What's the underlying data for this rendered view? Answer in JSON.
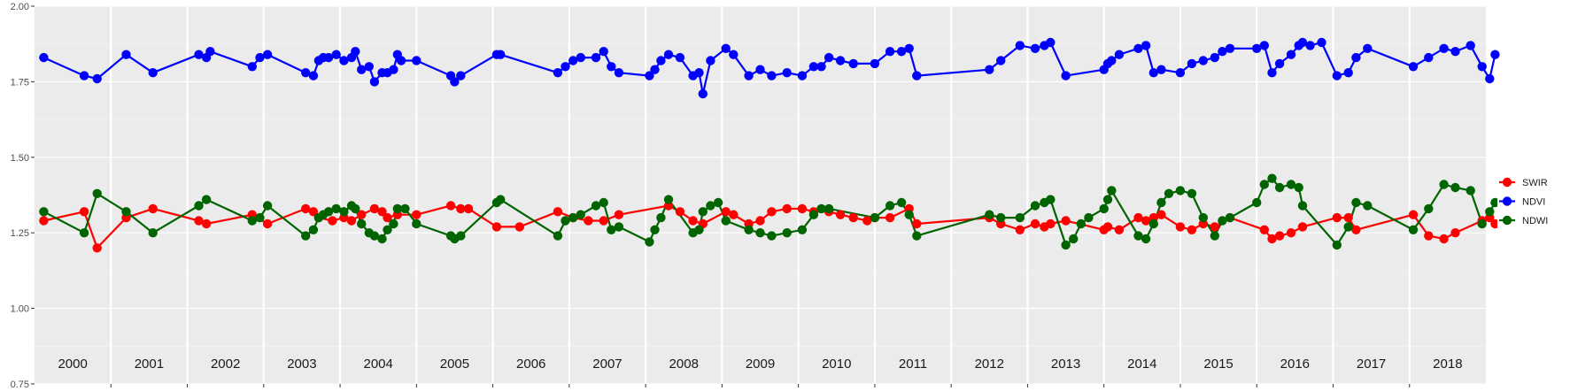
{
  "chart_data": {
    "type": "line",
    "title": "",
    "xlabel": "",
    "ylabel": "",
    "ylim": [
      0.75,
      2.0
    ],
    "yticks": [
      "0.75",
      "1.00",
      "1.25",
      "1.50",
      "1.75",
      "2.00"
    ],
    "xlim": [
      2000.0,
      2019.0
    ],
    "year_labels": [
      "2000",
      "2001",
      "2002",
      "2003",
      "2004",
      "2005",
      "2006",
      "2007",
      "2008",
      "2009",
      "2010",
      "2011",
      "2012",
      "2013",
      "2014",
      "2015",
      "2016",
      "2017",
      "2018"
    ],
    "grid": true,
    "background": "#EBEBEB",
    "legend": {
      "position": "right"
    },
    "series": [
      {
        "name": "SWIR",
        "color": "#FF0000",
        "points": [
          [
            2000.12,
            1.29
          ],
          [
            2000.65,
            1.32
          ],
          [
            2000.82,
            1.2
          ],
          [
            2001.2,
            1.3
          ],
          [
            2001.55,
            1.33
          ],
          [
            2002.15,
            1.29
          ],
          [
            2002.25,
            1.28
          ],
          [
            2002.85,
            1.31
          ],
          [
            2003.05,
            1.28
          ],
          [
            2003.55,
            1.33
          ],
          [
            2003.65,
            1.32
          ],
          [
            2003.72,
            1.3
          ],
          [
            2003.9,
            1.29
          ],
          [
            2004.05,
            1.3
          ],
          [
            2004.15,
            1.29
          ],
          [
            2004.28,
            1.31
          ],
          [
            2004.45,
            1.33
          ],
          [
            2004.55,
            1.32
          ],
          [
            2004.62,
            1.3
          ],
          [
            2004.75,
            1.31
          ],
          [
            2005.0,
            1.31
          ],
          [
            2005.45,
            1.34
          ],
          [
            2005.58,
            1.33
          ],
          [
            2005.68,
            1.33
          ],
          [
            2006.05,
            1.27
          ],
          [
            2006.35,
            1.27
          ],
          [
            2006.85,
            1.32
          ],
          [
            2007.05,
            1.3
          ],
          [
            2007.25,
            1.29
          ],
          [
            2007.45,
            1.29
          ],
          [
            2007.65,
            1.31
          ],
          [
            2008.3,
            1.34
          ],
          [
            2008.45,
            1.32
          ],
          [
            2008.62,
            1.29
          ],
          [
            2008.75,
            1.28
          ],
          [
            2009.05,
            1.32
          ],
          [
            2009.15,
            1.31
          ],
          [
            2009.35,
            1.28
          ],
          [
            2009.5,
            1.29
          ],
          [
            2009.65,
            1.32
          ],
          [
            2009.85,
            1.33
          ],
          [
            2010.05,
            1.33
          ],
          [
            2010.2,
            1.32
          ],
          [
            2010.4,
            1.32
          ],
          [
            2010.55,
            1.31
          ],
          [
            2010.72,
            1.3
          ],
          [
            2010.9,
            1.29
          ],
          [
            2011.0,
            1.3
          ],
          [
            2011.2,
            1.3
          ],
          [
            2011.45,
            1.33
          ],
          [
            2011.55,
            1.28
          ],
          [
            2012.5,
            1.3
          ],
          [
            2012.65,
            1.28
          ],
          [
            2012.9,
            1.26
          ],
          [
            2013.1,
            1.28
          ],
          [
            2013.22,
            1.27
          ],
          [
            2013.3,
            1.28
          ],
          [
            2013.5,
            1.29
          ],
          [
            2014.0,
            1.26
          ],
          [
            2014.05,
            1.27
          ],
          [
            2014.2,
            1.26
          ],
          [
            2014.45,
            1.3
          ],
          [
            2014.55,
            1.29
          ],
          [
            2014.65,
            1.3
          ],
          [
            2014.75,
            1.31
          ],
          [
            2015.0,
            1.27
          ],
          [
            2015.15,
            1.26
          ],
          [
            2015.3,
            1.28
          ],
          [
            2015.45,
            1.27
          ],
          [
            2015.65,
            1.3
          ],
          [
            2016.1,
            1.26
          ],
          [
            2016.2,
            1.23
          ],
          [
            2016.3,
            1.24
          ],
          [
            2016.45,
            1.25
          ],
          [
            2016.6,
            1.27
          ],
          [
            2017.05,
            1.3
          ],
          [
            2017.2,
            1.3
          ],
          [
            2017.3,
            1.26
          ],
          [
            2018.05,
            1.31
          ],
          [
            2018.25,
            1.24
          ],
          [
            2018.45,
            1.23
          ],
          [
            2018.6,
            1.25
          ],
          [
            2018.95,
            1.29
          ],
          [
            2019.05,
            1.3
          ],
          [
            2019.12,
            1.28
          ]
        ]
      },
      {
        "name": "NDVI",
        "color": "#0000FF",
        "points": [
          [
            2000.12,
            1.83
          ],
          [
            2000.65,
            1.77
          ],
          [
            2000.82,
            1.76
          ],
          [
            2001.2,
            1.84
          ],
          [
            2001.55,
            1.78
          ],
          [
            2002.15,
            1.84
          ],
          [
            2002.25,
            1.83
          ],
          [
            2002.3,
            1.85
          ],
          [
            2002.85,
            1.8
          ],
          [
            2002.95,
            1.83
          ],
          [
            2003.05,
            1.84
          ],
          [
            2003.55,
            1.78
          ],
          [
            2003.65,
            1.77
          ],
          [
            2003.72,
            1.82
          ],
          [
            2003.78,
            1.83
          ],
          [
            2003.85,
            1.83
          ],
          [
            2003.95,
            1.84
          ],
          [
            2004.05,
            1.82
          ],
          [
            2004.15,
            1.83
          ],
          [
            2004.2,
            1.85
          ],
          [
            2004.28,
            1.79
          ],
          [
            2004.38,
            1.8
          ],
          [
            2004.45,
            1.75
          ],
          [
            2004.55,
            1.78
          ],
          [
            2004.62,
            1.78
          ],
          [
            2004.7,
            1.79
          ],
          [
            2004.75,
            1.84
          ],
          [
            2004.8,
            1.82
          ],
          [
            2005.0,
            1.82
          ],
          [
            2005.45,
            1.77
          ],
          [
            2005.5,
            1.75
          ],
          [
            2005.58,
            1.77
          ],
          [
            2006.05,
            1.84
          ],
          [
            2006.1,
            1.84
          ],
          [
            2006.85,
            1.78
          ],
          [
            2006.95,
            1.8
          ],
          [
            2007.05,
            1.82
          ],
          [
            2007.15,
            1.83
          ],
          [
            2007.35,
            1.83
          ],
          [
            2007.45,
            1.85
          ],
          [
            2007.55,
            1.8
          ],
          [
            2007.65,
            1.78
          ],
          [
            2008.05,
            1.77
          ],
          [
            2008.12,
            1.79
          ],
          [
            2008.2,
            1.82
          ],
          [
            2008.3,
            1.84
          ],
          [
            2008.45,
            1.83
          ],
          [
            2008.62,
            1.77
          ],
          [
            2008.7,
            1.78
          ],
          [
            2008.75,
            1.71
          ],
          [
            2008.85,
            1.82
          ],
          [
            2009.05,
            1.86
          ],
          [
            2009.15,
            1.84
          ],
          [
            2009.35,
            1.77
          ],
          [
            2009.5,
            1.79
          ],
          [
            2009.65,
            1.77
          ],
          [
            2009.85,
            1.78
          ],
          [
            2010.05,
            1.77
          ],
          [
            2010.2,
            1.8
          ],
          [
            2010.3,
            1.8
          ],
          [
            2010.4,
            1.83
          ],
          [
            2010.55,
            1.82
          ],
          [
            2010.72,
            1.81
          ],
          [
            2011.0,
            1.81
          ],
          [
            2011.2,
            1.85
          ],
          [
            2011.35,
            1.85
          ],
          [
            2011.45,
            1.86
          ],
          [
            2011.55,
            1.77
          ],
          [
            2012.5,
            1.79
          ],
          [
            2012.65,
            1.82
          ],
          [
            2012.9,
            1.87
          ],
          [
            2013.1,
            1.86
          ],
          [
            2013.22,
            1.87
          ],
          [
            2013.3,
            1.88
          ],
          [
            2013.5,
            1.77
          ],
          [
            2014.0,
            1.79
          ],
          [
            2014.05,
            1.81
          ],
          [
            2014.1,
            1.82
          ],
          [
            2014.2,
            1.84
          ],
          [
            2014.45,
            1.86
          ],
          [
            2014.55,
            1.87
          ],
          [
            2014.65,
            1.78
          ],
          [
            2014.75,
            1.79
          ],
          [
            2015.0,
            1.78
          ],
          [
            2015.15,
            1.81
          ],
          [
            2015.3,
            1.82
          ],
          [
            2015.45,
            1.83
          ],
          [
            2015.55,
            1.85
          ],
          [
            2015.65,
            1.86
          ],
          [
            2016.0,
            1.86
          ],
          [
            2016.1,
            1.87
          ],
          [
            2016.2,
            1.78
          ],
          [
            2016.3,
            1.81
          ],
          [
            2016.45,
            1.84
          ],
          [
            2016.55,
            1.87
          ],
          [
            2016.6,
            1.88
          ],
          [
            2016.7,
            1.87
          ],
          [
            2016.85,
            1.88
          ],
          [
            2017.05,
            1.77
          ],
          [
            2017.2,
            1.78
          ],
          [
            2017.3,
            1.83
          ],
          [
            2017.45,
            1.86
          ],
          [
            2018.05,
            1.8
          ],
          [
            2018.25,
            1.83
          ],
          [
            2018.45,
            1.86
          ],
          [
            2018.6,
            1.85
          ],
          [
            2018.8,
            1.87
          ],
          [
            2018.95,
            1.8
          ],
          [
            2019.05,
            1.76
          ],
          [
            2019.12,
            1.84
          ]
        ]
      },
      {
        "name": "NDWI",
        "color": "#006400",
        "points": [
          [
            2000.12,
            1.32
          ],
          [
            2000.65,
            1.25
          ],
          [
            2000.82,
            1.38
          ],
          [
            2001.2,
            1.32
          ],
          [
            2001.55,
            1.25
          ],
          [
            2002.15,
            1.34
          ],
          [
            2002.25,
            1.36
          ],
          [
            2002.85,
            1.29
          ],
          [
            2002.95,
            1.3
          ],
          [
            2003.05,
            1.34
          ],
          [
            2003.55,
            1.24
          ],
          [
            2003.65,
            1.26
          ],
          [
            2003.72,
            1.3
          ],
          [
            2003.78,
            1.31
          ],
          [
            2003.85,
            1.32
          ],
          [
            2003.95,
            1.33
          ],
          [
            2004.05,
            1.32
          ],
          [
            2004.15,
            1.34
          ],
          [
            2004.2,
            1.33
          ],
          [
            2004.28,
            1.28
          ],
          [
            2004.38,
            1.25
          ],
          [
            2004.45,
            1.24
          ],
          [
            2004.55,
            1.23
          ],
          [
            2004.62,
            1.26
          ],
          [
            2004.7,
            1.28
          ],
          [
            2004.75,
            1.33
          ],
          [
            2004.85,
            1.33
          ],
          [
            2005.0,
            1.28
          ],
          [
            2005.45,
            1.24
          ],
          [
            2005.5,
            1.23
          ],
          [
            2005.58,
            1.24
          ],
          [
            2006.05,
            1.35
          ],
          [
            2006.1,
            1.36
          ],
          [
            2006.85,
            1.24
          ],
          [
            2006.95,
            1.29
          ],
          [
            2007.05,
            1.3
          ],
          [
            2007.15,
            1.31
          ],
          [
            2007.35,
            1.34
          ],
          [
            2007.45,
            1.35
          ],
          [
            2007.55,
            1.26
          ],
          [
            2007.65,
            1.27
          ],
          [
            2008.05,
            1.22
          ],
          [
            2008.12,
            1.26
          ],
          [
            2008.2,
            1.3
          ],
          [
            2008.3,
            1.36
          ],
          [
            2008.62,
            1.25
          ],
          [
            2008.7,
            1.26
          ],
          [
            2008.75,
            1.32
          ],
          [
            2008.85,
            1.34
          ],
          [
            2008.95,
            1.35
          ],
          [
            2009.05,
            1.29
          ],
          [
            2009.35,
            1.26
          ],
          [
            2009.5,
            1.25
          ],
          [
            2009.65,
            1.24
          ],
          [
            2009.85,
            1.25
          ],
          [
            2010.05,
            1.26
          ],
          [
            2010.2,
            1.31
          ],
          [
            2010.3,
            1.33
          ],
          [
            2010.4,
            1.33
          ],
          [
            2011.0,
            1.3
          ],
          [
            2011.2,
            1.34
          ],
          [
            2011.35,
            1.35
          ],
          [
            2011.45,
            1.31
          ],
          [
            2011.55,
            1.24
          ],
          [
            2012.5,
            1.31
          ],
          [
            2012.65,
            1.3
          ],
          [
            2012.9,
            1.3
          ],
          [
            2013.1,
            1.34
          ],
          [
            2013.22,
            1.35
          ],
          [
            2013.3,
            1.36
          ],
          [
            2013.5,
            1.21
          ],
          [
            2013.6,
            1.23
          ],
          [
            2013.7,
            1.28
          ],
          [
            2013.8,
            1.3
          ],
          [
            2014.0,
            1.33
          ],
          [
            2014.05,
            1.36
          ],
          [
            2014.1,
            1.39
          ],
          [
            2014.45,
            1.24
          ],
          [
            2014.55,
            1.23
          ],
          [
            2014.65,
            1.28
          ],
          [
            2014.75,
            1.35
          ],
          [
            2014.85,
            1.38
          ],
          [
            2015.0,
            1.39
          ],
          [
            2015.15,
            1.38
          ],
          [
            2015.3,
            1.3
          ],
          [
            2015.45,
            1.24
          ],
          [
            2015.55,
            1.29
          ],
          [
            2015.65,
            1.3
          ],
          [
            2016.0,
            1.35
          ],
          [
            2016.1,
            1.41
          ],
          [
            2016.2,
            1.43
          ],
          [
            2016.3,
            1.4
          ],
          [
            2016.45,
            1.41
          ],
          [
            2016.55,
            1.4
          ],
          [
            2016.6,
            1.34
          ],
          [
            2017.05,
            1.21
          ],
          [
            2017.2,
            1.27
          ],
          [
            2017.3,
            1.35
          ],
          [
            2017.45,
            1.34
          ],
          [
            2018.05,
            1.26
          ],
          [
            2018.25,
            1.33
          ],
          [
            2018.45,
            1.41
          ],
          [
            2018.6,
            1.4
          ],
          [
            2018.8,
            1.39
          ],
          [
            2018.95,
            1.28
          ],
          [
            2019.05,
            1.32
          ],
          [
            2019.12,
            1.35
          ]
        ]
      }
    ]
  }
}
